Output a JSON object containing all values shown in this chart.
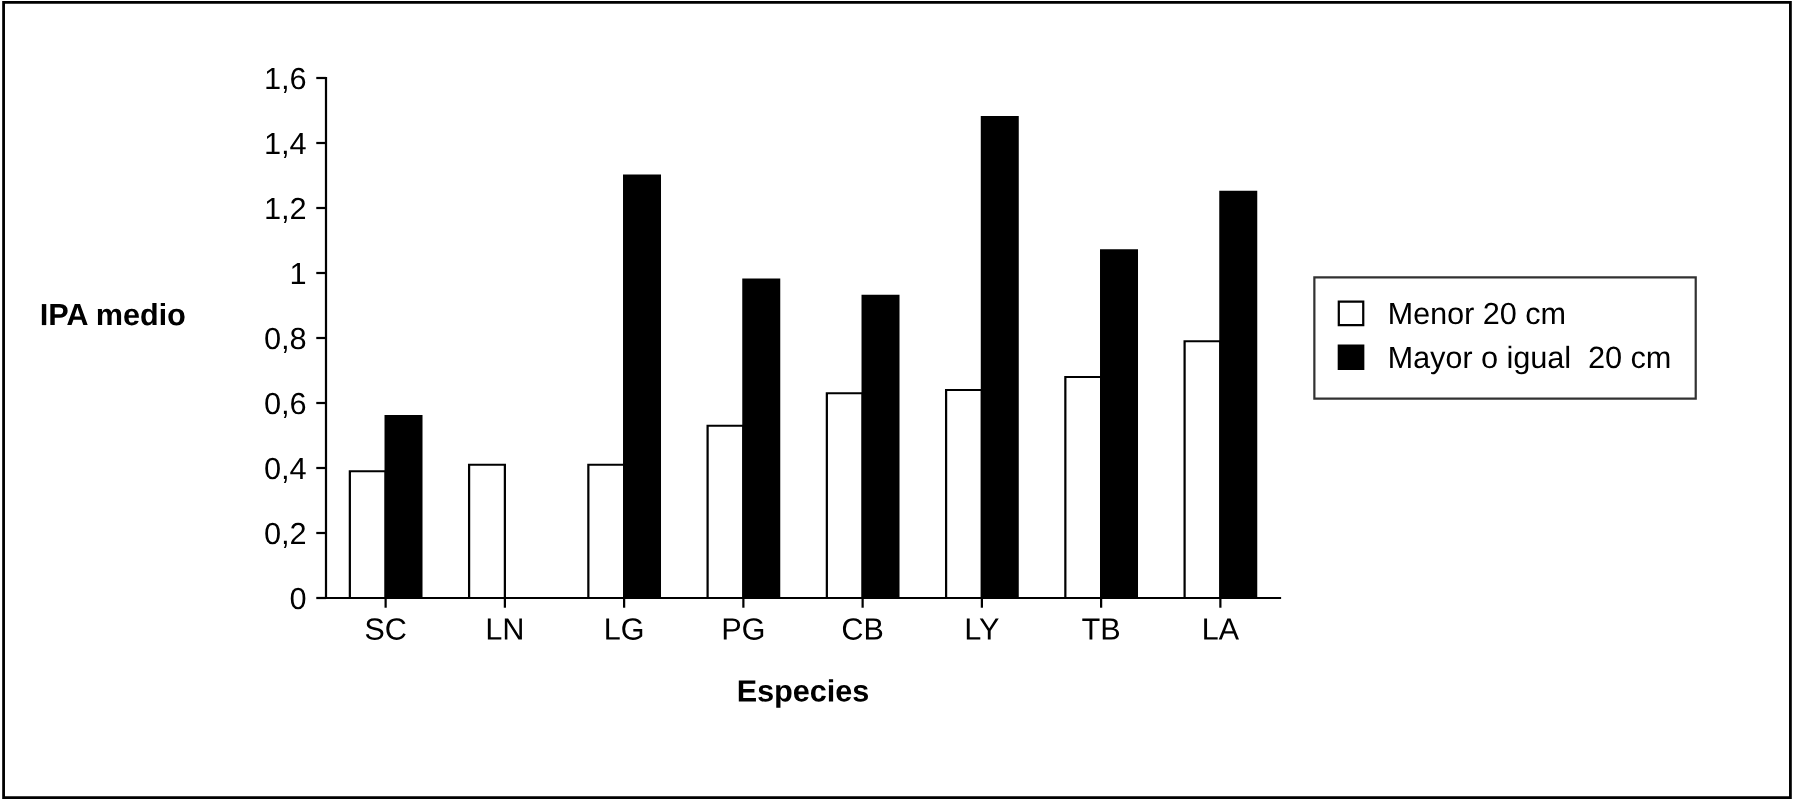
{
  "chart_data": {
    "type": "bar",
    "xlabel": "Especies",
    "ylabel": "IPA medio",
    "categories": [
      "SC",
      "LN",
      "LG",
      "PG",
      "CB",
      "LY",
      "TB",
      "LA"
    ],
    "series": [
      {
        "name": "Menor 20 cm",
        "color": "#ffffff",
        "values": [
          0.39,
          0.41,
          0.41,
          0.53,
          0.63,
          0.64,
          0.68,
          0.79
        ]
      },
      {
        "name": "Mayor o igual  20 cm",
        "color": "#000000",
        "values": [
          0.56,
          null,
          1.3,
          0.98,
          0.93,
          1.48,
          1.07,
          1.25
        ]
      }
    ],
    "ylim": [
      0,
      1.6
    ],
    "yticks": [
      0,
      {
        "value": 0.2,
        "label": "0,2"
      },
      {
        "value": 0.4,
        "label": "0,4"
      },
      {
        "value": 0.6,
        "label": "0,6"
      },
      {
        "value": 0.8,
        "label": "0,8"
      },
      1,
      {
        "value": 1.2,
        "label": "1,2"
      },
      {
        "value": 1.4,
        "label": "1,4"
      },
      {
        "value": 1.6,
        "label": "1,6"
      }
    ],
    "grid": false,
    "legend": "right"
  }
}
